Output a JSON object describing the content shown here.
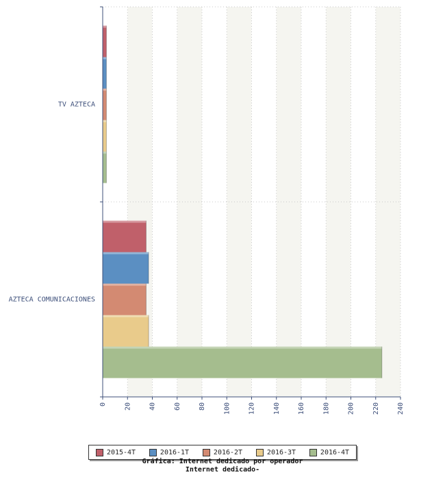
{
  "chart_data": {
    "type": "bar",
    "orientation": "horizontal",
    "title": "Internet dedicado-",
    "subtitle": "Gráfica: Internet dedicado por operador",
    "xlabel": "",
    "ylabel": "",
    "categories": [
      "TV AZTECA",
      "AZTECA COMUNICACIONES"
    ],
    "series": [
      {
        "name": "2015-4T",
        "color": "#c0606a",
        "values": [
          3,
          35
        ]
      },
      {
        "name": "2016-1T",
        "color": "#5b8fc2",
        "values": [
          3,
          37
        ]
      },
      {
        "name": "2016-2T",
        "color": "#d38a72",
        "values": [
          3,
          35
        ]
      },
      {
        "name": "2016-3T",
        "color": "#e9cb8b",
        "values": [
          3,
          37
        ]
      },
      {
        "name": "2016-4T",
        "color": "#a5bd8e",
        "values": [
          3,
          225
        ]
      }
    ],
    "xlim": [
      0,
      240
    ],
    "xticks": [
      "0",
      "20",
      "40",
      "60",
      "80",
      "100",
      "120",
      "140",
      "160",
      "180",
      "200",
      "220",
      "240"
    ],
    "grid": true,
    "legend_position": "bottom"
  }
}
